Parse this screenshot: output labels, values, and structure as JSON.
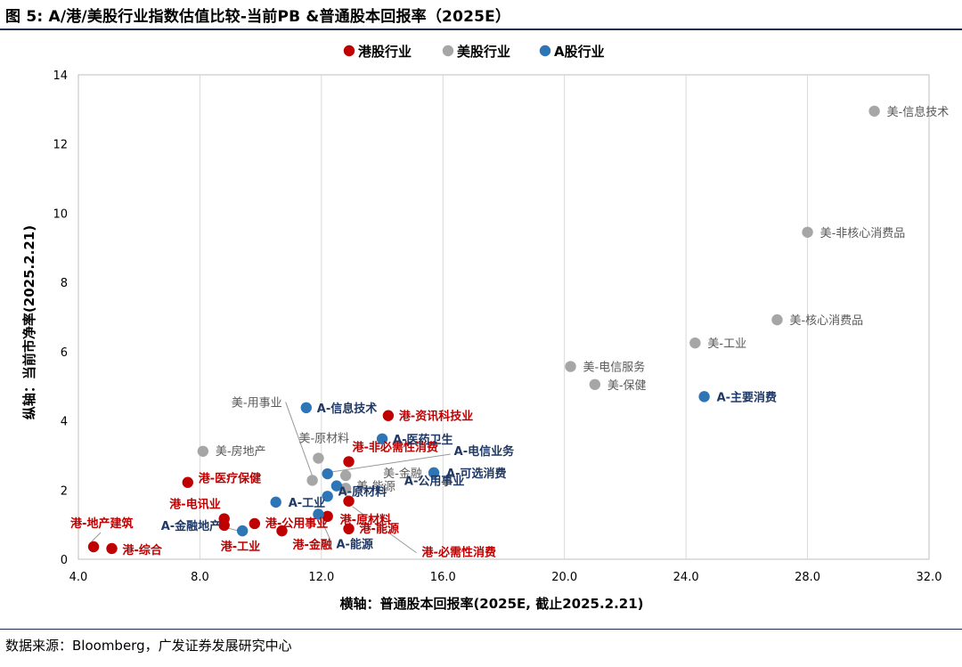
{
  "figure": {
    "title": "图 5: A/港/美股行业指数估值比较-当前PB &普通股本回报率（2025E）",
    "source": "数据来源：Bloomberg，广发证券发展研究中心"
  },
  "chart_data": {
    "type": "scatter",
    "xlabel": "横轴：普通股本回报率(2025E, 截止2025.2.21)",
    "ylabel": "纵轴：当前市净率(2025.2.21)",
    "xlim": [
      4.0,
      32.0
    ],
    "ylim": [
      0,
      14
    ],
    "xticks": [
      4.0,
      8.0,
      12.0,
      16.0,
      20.0,
      24.0,
      28.0,
      32.0
    ],
    "xtick_labels": [
      "4.0",
      "8.0",
      "12.0",
      "16.0",
      "20.0",
      "24.0",
      "28.0",
      "32.0"
    ],
    "yticks": [
      0,
      2,
      4,
      6,
      8,
      10,
      12,
      14
    ],
    "ytick_labels": [
      "0",
      "2",
      "4",
      "6",
      "8",
      "10",
      "12",
      "14"
    ],
    "grid": "vertical",
    "legend_position": "top-left",
    "series": [
      {
        "name": "港股行业",
        "color": "#c00000",
        "points": [
          {
            "label": "港-资讯科技业",
            "x": 14.2,
            "y": 4.15
          },
          {
            "label": "港-非必需性消费",
            "x": 12.9,
            "y": 2.82
          },
          {
            "label": "港-医疗保健",
            "x": 7.6,
            "y": 2.22
          },
          {
            "label": "港-电讯业",
            "x": 8.8,
            "y": 1.17
          },
          {
            "label": "港-地产建筑",
            "x": 4.5,
            "y": 0.36
          },
          {
            "label": "港-综合",
            "x": 5.1,
            "y": 0.31
          },
          {
            "label": "港-工业",
            "x": 8.8,
            "y": 0.98
          },
          {
            "label": "港-公用事业",
            "x": 9.8,
            "y": 1.03
          },
          {
            "label": "港-金融",
            "x": 10.7,
            "y": 0.82
          },
          {
            "label": "港-原材料",
            "x": 12.2,
            "y": 1.24
          },
          {
            "label": "港-能源",
            "x": 12.9,
            "y": 0.88
          },
          {
            "label": "港-必需性消费",
            "x": 12.9,
            "y": 1.68
          }
        ]
      },
      {
        "name": "美股行业",
        "color": "#a6a6a6",
        "points": [
          {
            "label": "美-信息技术",
            "x": 30.2,
            "y": 12.95
          },
          {
            "label": "美-非核心消费品",
            "x": 28.0,
            "y": 9.45
          },
          {
            "label": "美-核心消费品",
            "x": 27.0,
            "y": 6.92
          },
          {
            "label": "美-工业",
            "x": 24.3,
            "y": 6.25
          },
          {
            "label": "美-电信服务",
            "x": 20.2,
            "y": 5.57
          },
          {
            "label": "美-保健",
            "x": 21.0,
            "y": 5.05
          },
          {
            "label": "美-房地产",
            "x": 8.1,
            "y": 3.12
          },
          {
            "label": "美-原材料",
            "x": 11.9,
            "y": 2.92
          },
          {
            "label": "美-用事业",
            "x": 11.7,
            "y": 2.28
          },
          {
            "label": "美-金融",
            "x": 12.8,
            "y": 2.42
          },
          {
            "label": "美-能源",
            "x": 12.8,
            "y": 2.05
          }
        ]
      },
      {
        "name": "A股行业",
        "color": "#2e75b6",
        "points": [
          {
            "label": "A-信息技术",
            "x": 11.5,
            "y": 4.38
          },
          {
            "label": "A-医药卫生",
            "x": 14.0,
            "y": 3.48
          },
          {
            "label": "A-电信业务",
            "x": 12.2,
            "y": 2.47
          },
          {
            "label": "A-可选消费",
            "x": 15.7,
            "y": 2.5
          },
          {
            "label": "A-主要消费",
            "x": 24.6,
            "y": 4.7
          },
          {
            "label": "A-工业",
            "x": 10.5,
            "y": 1.65
          },
          {
            "label": "A-原材料",
            "x": 12.2,
            "y": 1.82
          },
          {
            "label": "A-公用事业",
            "x": 12.5,
            "y": 2.12
          },
          {
            "label": "A-金融地产",
            "x": 9.4,
            "y": 0.82
          },
          {
            "label": "A-能源",
            "x": 11.9,
            "y": 1.3
          }
        ]
      }
    ]
  }
}
